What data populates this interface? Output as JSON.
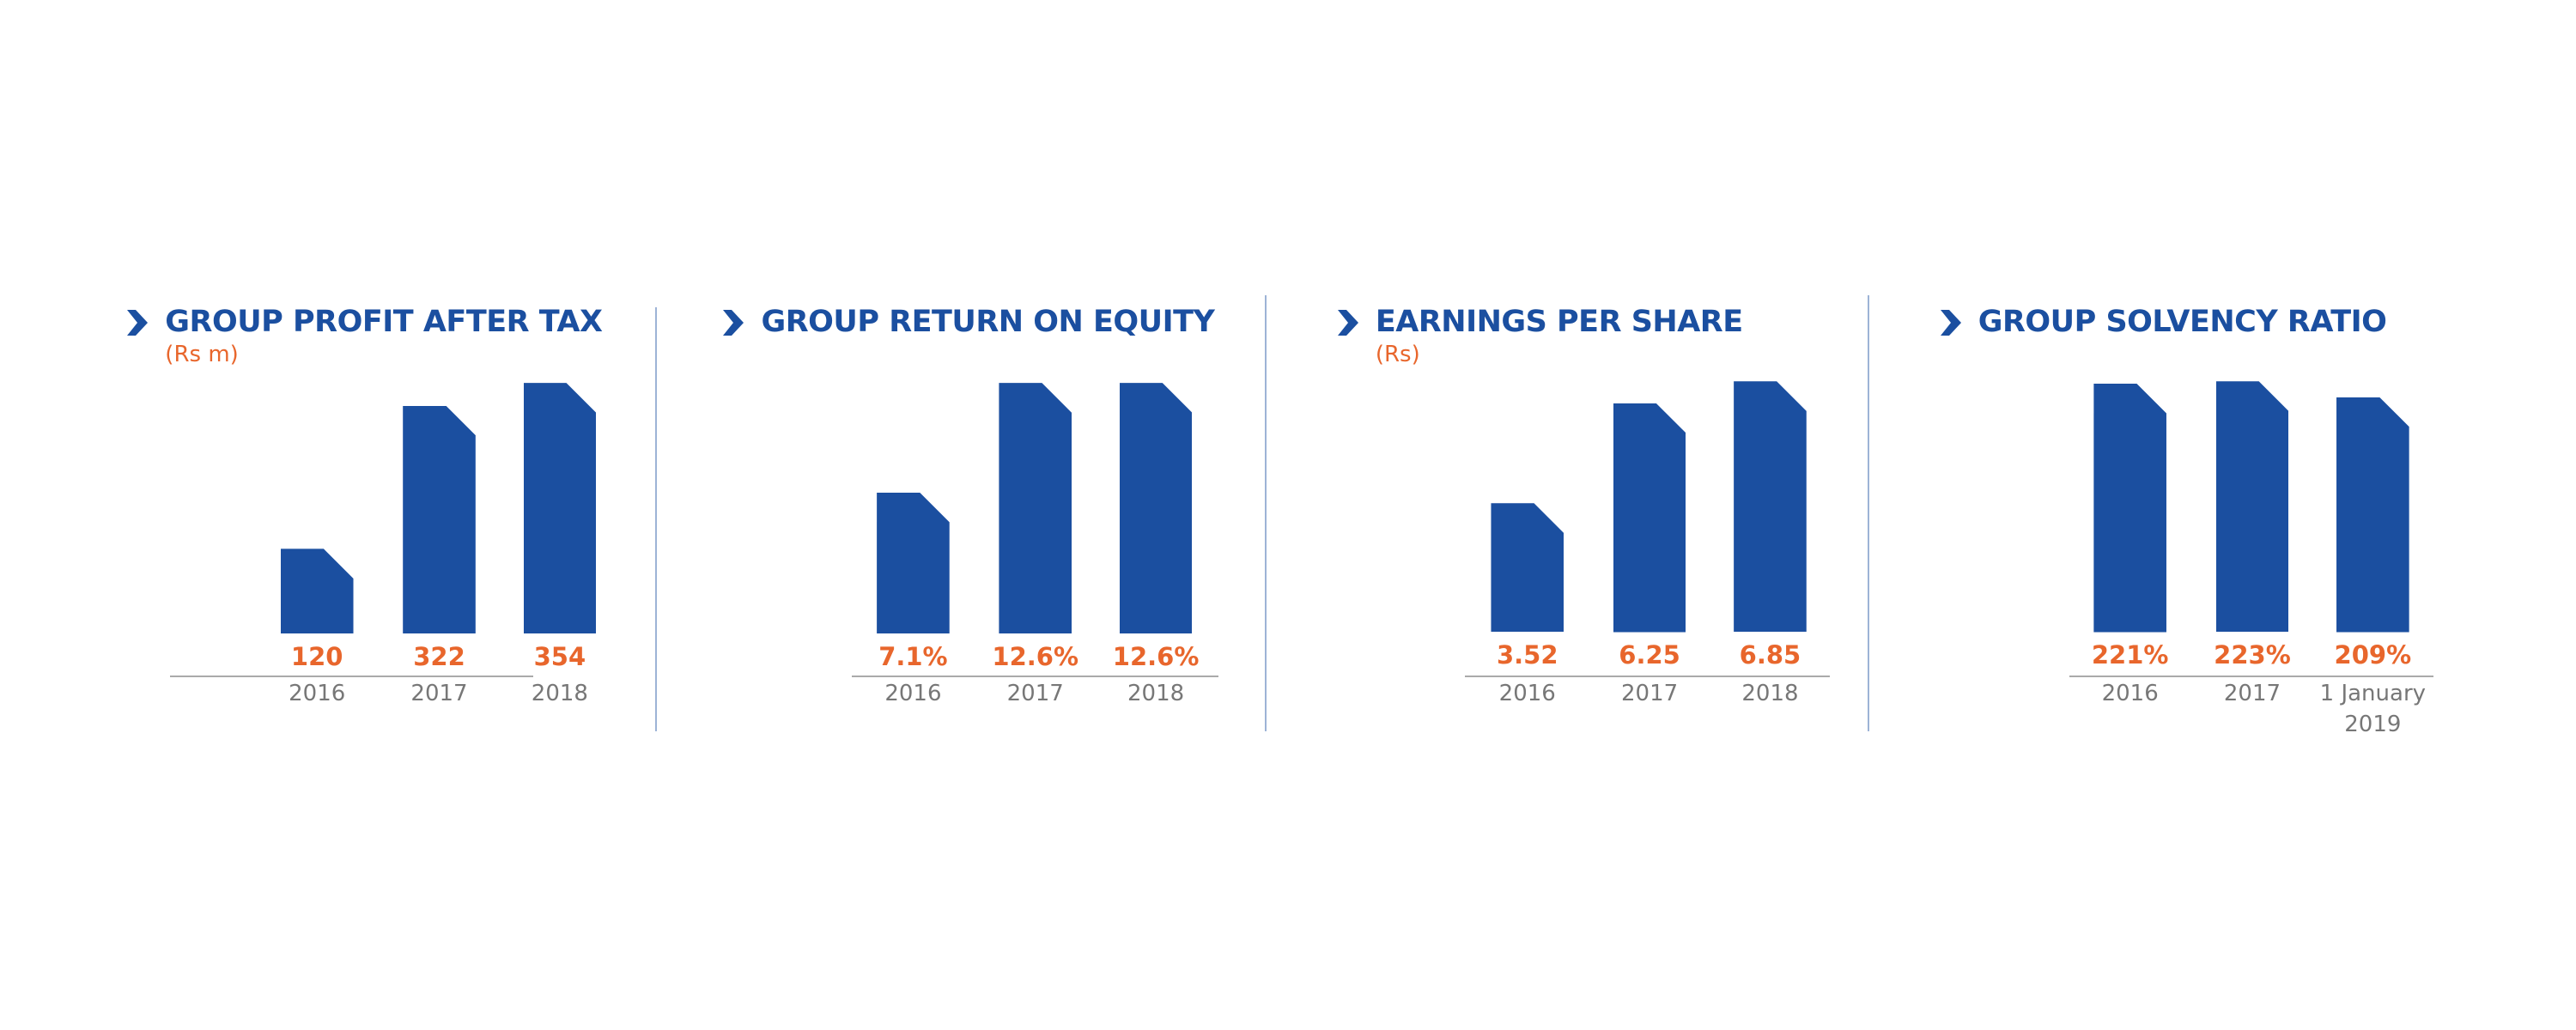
{
  "chart_data": [
    {
      "type": "bar",
      "title": "GROUP PROFIT AFTER TAX",
      "subtitle": "(Rs m)",
      "categories": [
        "2016",
        "2017",
        "2018"
      ],
      "values": [
        120,
        322,
        354
      ],
      "color": "#1b4fa0",
      "label_color": "#e8662c"
    },
    {
      "type": "bar",
      "title": "GROUP RETURN ON EQUITY",
      "categories": [
        "2016",
        "2017",
        "2018"
      ],
      "values": [
        7.1,
        12.6,
        12.6
      ],
      "value_labels": [
        "7.1%",
        "12.6%",
        "12.6%"
      ],
      "color": "#1b4fa0",
      "label_color": "#e8662c"
    },
    {
      "type": "bar",
      "title": "EARNINGS PER SHARE",
      "subtitle": "(Rs)",
      "categories": [
        "2016",
        "2017",
        "2018"
      ],
      "values": [
        3.52,
        6.25,
        6.85
      ],
      "color": "#1b4fa0",
      "label_color": "#e8662c"
    },
    {
      "type": "bar",
      "title": "GROUP SOLVENCY RATIO",
      "categories": [
        "2016",
        "2017",
        "1 January 2019"
      ],
      "values": [
        221,
        223,
        209
      ],
      "value_labels": [
        "221%",
        "223%",
        "209%"
      ],
      "color": "#1b4fa0",
      "label_color": "#e8662c"
    }
  ]
}
